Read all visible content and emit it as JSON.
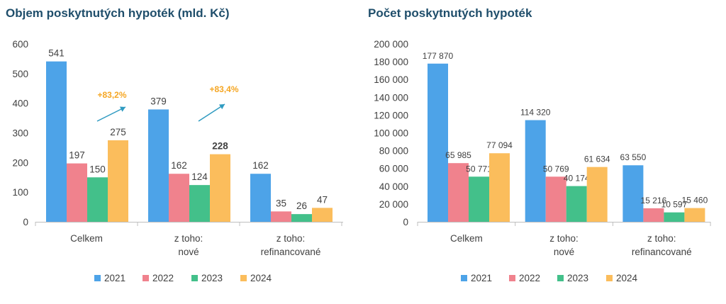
{
  "legend": [
    {
      "name": "2021",
      "color": "#4da3e8"
    },
    {
      "name": "2022",
      "color": "#f0828d"
    },
    {
      "name": "2023",
      "color": "#43c08a"
    },
    {
      "name": "2024",
      "color": "#fbbd5c"
    }
  ],
  "chart_data": [
    {
      "type": "bar",
      "title": "Objem poskytnutých hypoték (mld. Kč)",
      "categories": [
        [
          "Celkem"
        ],
        [
          "z toho:",
          "nové"
        ],
        [
          "z toho:",
          "refinancované"
        ]
      ],
      "series": [
        {
          "name": "2021",
          "values": [
            541,
            379,
            162
          ]
        },
        {
          "name": "2022",
          "values": [
            197,
            162,
            35
          ]
        },
        {
          "name": "2023",
          "values": [
            150,
            124,
            26
          ]
        },
        {
          "name": "2024",
          "values": [
            275,
            228,
            47
          ]
        }
      ],
      "value_labels": [
        [
          "541",
          "379",
          "162"
        ],
        [
          "197",
          "162",
          "35"
        ],
        [
          "150",
          "124",
          "26"
        ],
        [
          "275",
          "228",
          "47"
        ]
      ],
      "ylim": [
        0,
        600
      ],
      "yticks": [
        "0",
        "100",
        "200",
        "300",
        "400",
        "500",
        "600"
      ],
      "ytick_values": [
        0,
        100,
        200,
        300,
        400,
        500,
        600
      ],
      "annotations": [
        "+83,2%",
        "+83,4%"
      ],
      "legend_position": "bottom"
    },
    {
      "type": "bar",
      "title": "Počet poskytnutých hypoték",
      "categories": [
        [
          "Celkem"
        ],
        [
          "z toho:",
          "nové"
        ],
        [
          "z toho:",
          "refinancované"
        ]
      ],
      "series": [
        {
          "name": "2021",
          "values": [
            177870,
            114320,
            63550
          ]
        },
        {
          "name": "2022",
          "values": [
            65985,
            50769,
            15216
          ]
        },
        {
          "name": "2023",
          "values": [
            50771,
            40174,
            10597
          ]
        },
        {
          "name": "2024",
          "values": [
            77094,
            61634,
            15460
          ]
        }
      ],
      "value_labels": [
        [
          "177 870",
          "114 320",
          "63 550"
        ],
        [
          "65 985",
          "50 769",
          "15 216"
        ],
        [
          "50 771",
          "40 174",
          "10 597"
        ],
        [
          "77 094",
          "61 634",
          "15 460"
        ]
      ],
      "ylim": [
        0,
        200000
      ],
      "yticks": [
        "0",
        "20 000",
        "40 000",
        "60 000",
        "80 000",
        "100 000",
        "120 000",
        "140 000",
        "160 000",
        "180 000",
        "200 000"
      ],
      "ytick_values": [
        0,
        20000,
        40000,
        60000,
        80000,
        100000,
        120000,
        140000,
        160000,
        180000,
        200000
      ],
      "legend_position": "bottom"
    }
  ]
}
